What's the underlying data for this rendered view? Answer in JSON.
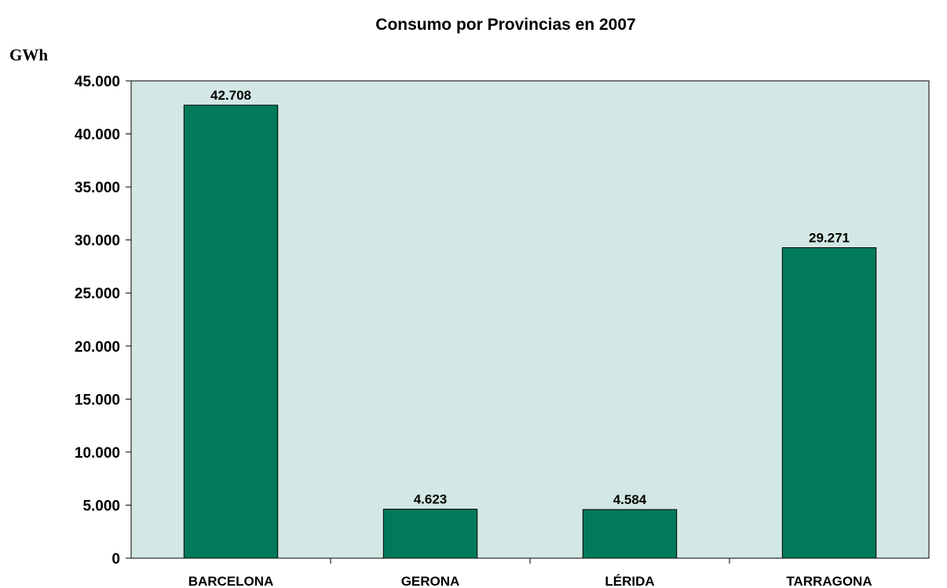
{
  "chart_data": {
    "type": "bar",
    "title": "Consumo por Provincias en 2007",
    "ylabel": "GWh",
    "xlabel": "",
    "categories": [
      "BARCELONA",
      "GERONA",
      "LÉRIDA",
      "TARRAGONA"
    ],
    "values": [
      42708,
      4623,
      4584,
      29271
    ],
    "data_labels": [
      "42.708",
      "4.623",
      "4.584",
      "29.271"
    ],
    "ylim": [
      0,
      45000
    ],
    "yticks": [
      0,
      5000,
      10000,
      15000,
      20000,
      25000,
      30000,
      35000,
      40000,
      45000
    ],
    "ytick_labels": [
      "0",
      "5.000",
      "10.000",
      "15.000",
      "20.000",
      "25.000",
      "30.000",
      "35.000",
      "40.000",
      "45.000"
    ],
    "grid": false,
    "legend": "none",
    "colors": {
      "bar": "#007a5a",
      "plot_background": "#d3e8e4",
      "axis": "#000000"
    }
  }
}
